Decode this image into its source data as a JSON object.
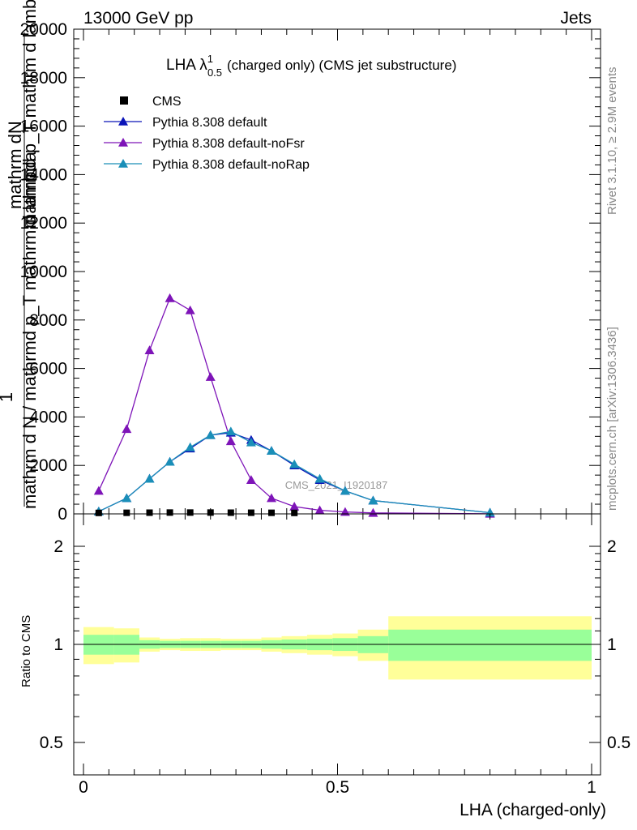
{
  "header": {
    "energy": "13000 GeV pp",
    "category": "Jets"
  },
  "side_labels": {
    "rivet": "Rivet 3.1.10, ≥ 2.9M events",
    "source": "mcplots.cern.ch [arXiv:1306.3436]"
  },
  "chart_data": [
    {
      "type": "line",
      "title_main": "LHA λ",
      "title_sup": "1",
      "title_sub": "0.5",
      "title_rest": "(charged only) (CMS jet substructure)",
      "ylabel_top": "mathrm dN",
      "ylabel_frac": "1",
      "ylabel_bottom": "mathrm d N / mathrmd p_T mathrm d lambda",
      "ylabel_overlay": "mathrmd p_T mathrm d lambda",
      "xlim": [
        0,
        1
      ],
      "ylim": [
        0,
        20000
      ],
      "yticks": [
        "0",
        "2000",
        "4000",
        "6000",
        "8000",
        "10000",
        "12000",
        "14000",
        "16000",
        "18000",
        "20000"
      ],
      "analysis_label": "CMS_2021_I1920187",
      "legend": [
        {
          "name": "CMS",
          "color": "#000000",
          "marker": "square"
        },
        {
          "name": "Pythia 8.308 default",
          "color": "#0a14b8",
          "marker": "triangle"
        },
        {
          "name": "Pythia 8.308 default-noFsr",
          "color": "#7e14b8",
          "marker": "triangle"
        },
        {
          "name": "Pythia 8.308 default-noRap",
          "color": "#1a8fb8",
          "marker": "triangle"
        }
      ],
      "series": [
        {
          "name": "CMS",
          "x": [
            0.03,
            0.085,
            0.13,
            0.17,
            0.21,
            0.25,
            0.29,
            0.33,
            0.37,
            0.415
          ],
          "values": [
            40,
            45,
            50,
            55,
            55,
            55,
            50,
            48,
            45,
            40
          ]
        },
        {
          "name": "Pythia 8.308 default",
          "x": [
            0.03,
            0.085,
            0.13,
            0.17,
            0.21,
            0.25,
            0.29,
            0.33,
            0.37,
            0.415,
            0.465,
            0.515,
            0.57,
            0.8
          ],
          "values": [
            100,
            650,
            1450,
            2150,
            2700,
            3250,
            3350,
            3050,
            2600,
            2000,
            1400,
            950,
            550,
            50
          ]
        },
        {
          "name": "Pythia 8.308 default-noFsr",
          "x": [
            0.03,
            0.085,
            0.13,
            0.17,
            0.21,
            0.25,
            0.29,
            0.33,
            0.37,
            0.415,
            0.465,
            0.515,
            0.57,
            0.8
          ],
          "values": [
            950,
            3500,
            6750,
            8900,
            8400,
            5650,
            3000,
            1400,
            650,
            300,
            150,
            80,
            40,
            5
          ]
        },
        {
          "name": "Pythia 8.308 default-noRap",
          "x": [
            0.03,
            0.085,
            0.13,
            0.17,
            0.21,
            0.25,
            0.29,
            0.33,
            0.37,
            0.415,
            0.465,
            0.515,
            0.57,
            0.8
          ],
          "values": [
            100,
            650,
            1450,
            2150,
            2750,
            3250,
            3400,
            2950,
            2600,
            2050,
            1450,
            950,
            550,
            50
          ]
        }
      ]
    },
    {
      "type": "area",
      "ylabel": "Ratio to CMS",
      "xlabel": "LHA (charged-only)",
      "xlim": [
        0,
        1
      ],
      "ylim": [
        0.4,
        2.3
      ],
      "ytick_labels": [
        "0.5",
        "1",
        "2"
      ],
      "ytick_values": [
        0.5,
        1,
        2
      ],
      "xtick_labels": [
        "0",
        "0.5",
        "1"
      ],
      "xtick_values": [
        0,
        0.5,
        1
      ],
      "reference": 1,
      "bins": [
        {
          "x0": 0.0,
          "x1": 0.06,
          "inner": [
            0.93,
            1.07
          ],
          "outer": [
            0.87,
            1.13
          ]
        },
        {
          "x0": 0.06,
          "x1": 0.11,
          "inner": [
            0.93,
            1.07
          ],
          "outer": [
            0.88,
            1.12
          ]
        },
        {
          "x0": 0.11,
          "x1": 0.15,
          "inner": [
            0.97,
            1.03
          ],
          "outer": [
            0.95,
            1.05
          ]
        },
        {
          "x0": 0.15,
          "x1": 0.19,
          "inner": [
            0.975,
            1.025
          ],
          "outer": [
            0.96,
            1.04
          ]
        },
        {
          "x0": 0.19,
          "x1": 0.23,
          "inner": [
            0.975,
            1.025
          ],
          "outer": [
            0.955,
            1.045
          ]
        },
        {
          "x0": 0.23,
          "x1": 0.27,
          "inner": [
            0.975,
            1.025
          ],
          "outer": [
            0.955,
            1.045
          ]
        },
        {
          "x0": 0.27,
          "x1": 0.31,
          "inner": [
            0.975,
            1.025
          ],
          "outer": [
            0.96,
            1.04
          ]
        },
        {
          "x0": 0.31,
          "x1": 0.35,
          "inner": [
            0.975,
            1.025
          ],
          "outer": [
            0.96,
            1.04
          ]
        },
        {
          "x0": 0.35,
          "x1": 0.39,
          "inner": [
            0.97,
            1.03
          ],
          "outer": [
            0.95,
            1.05
          ]
        },
        {
          "x0": 0.39,
          "x1": 0.44,
          "inner": [
            0.965,
            1.035
          ],
          "outer": [
            0.94,
            1.06
          ]
        },
        {
          "x0": 0.44,
          "x1": 0.49,
          "inner": [
            0.96,
            1.04
          ],
          "outer": [
            0.93,
            1.07
          ]
        },
        {
          "x0": 0.49,
          "x1": 0.54,
          "inner": [
            0.955,
            1.045
          ],
          "outer": [
            0.92,
            1.08
          ]
        },
        {
          "x0": 0.54,
          "x1": 0.6,
          "inner": [
            0.94,
            1.06
          ],
          "outer": [
            0.89,
            1.11
          ]
        },
        {
          "x0": 0.6,
          "x1": 1.0,
          "inner": [
            0.89,
            1.11
          ],
          "outer": [
            0.78,
            1.22
          ]
        }
      ],
      "colors": {
        "inner": "#99ff99",
        "outer": "#ffff99"
      }
    }
  ]
}
